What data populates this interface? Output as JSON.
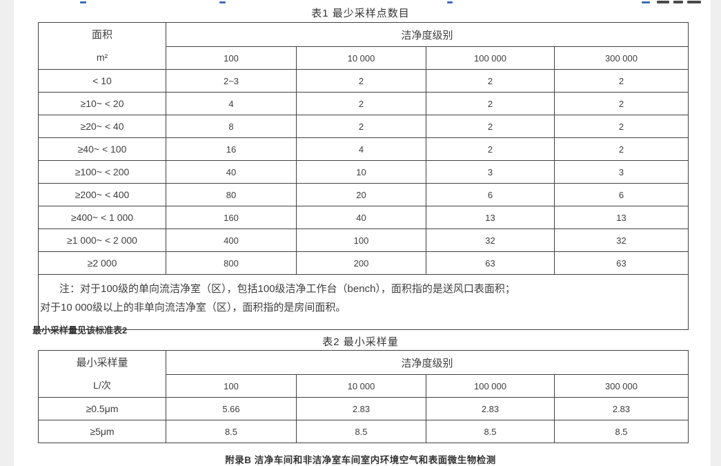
{
  "colors": {
    "border": "#404040",
    "text": "#3d3d3d",
    "side_strip": "#efefef",
    "link_fragment": "#3a6cb5"
  },
  "table1": {
    "title": "表1 最少采样点数目",
    "header": {
      "col1_line1": "面积",
      "col1_line2": "m²",
      "span_label": "洁净度级别",
      "classes": [
        "100",
        "10 000",
        "100 000",
        "300 000"
      ]
    },
    "rows": [
      {
        "area": "< 10",
        "values": [
          "2~3",
          "2",
          "2",
          "2"
        ]
      },
      {
        "area": "≥10~ < 20",
        "values": [
          "4",
          "2",
          "2",
          "2"
        ]
      },
      {
        "area": "≥20~ < 40",
        "values": [
          "8",
          "2",
          "2",
          "2"
        ]
      },
      {
        "area": "≥40~ < 100",
        "values": [
          "16",
          "4",
          "2",
          "2"
        ]
      },
      {
        "area": "≥100~ < 200",
        "values": [
          "40",
          "10",
          "3",
          "3"
        ]
      },
      {
        "area": "≥200~ < 400",
        "values": [
          "80",
          "20",
          "6",
          "6"
        ]
      },
      {
        "area": "≥400~ < 1 000",
        "values": [
          "160",
          "40",
          "13",
          "13"
        ]
      },
      {
        "area": "≥1 000~ < 2 000",
        "values": [
          "400",
          "100",
          "32",
          "32"
        ]
      },
      {
        "area": "≥2 000",
        "values": [
          "800",
          "200",
          "63",
          "63"
        ]
      }
    ],
    "note_lines": [
      "注：对于100级的单向流洁净室（区），包括100级洁净工作台（bench），面积指的是送风口表面积；",
      "对于10 000级以上的非单向流洁净室（区），面积指的是房间面积。"
    ]
  },
  "between_text": "最小采样量见该标准表2",
  "table2": {
    "title": "表2 最小采样量",
    "header": {
      "col1_line1": "最小采样量",
      "col1_line2": "L/次",
      "span_label": "洁净度级别",
      "classes": [
        "100",
        "10 000",
        "100 000",
        "300 000"
      ]
    },
    "rows": [
      {
        "size": "≥0.5μm",
        "values": [
          "5.66",
          "2.83",
          "2.83",
          "2.83"
        ]
      },
      {
        "size": "≥5μm",
        "values": [
          "8.5",
          "8.5",
          "8.5",
          "8.5"
        ]
      }
    ]
  },
  "footer_heading": "附录B 洁净车间和非洁净室车间室内环境空气和表面微生物检测"
}
